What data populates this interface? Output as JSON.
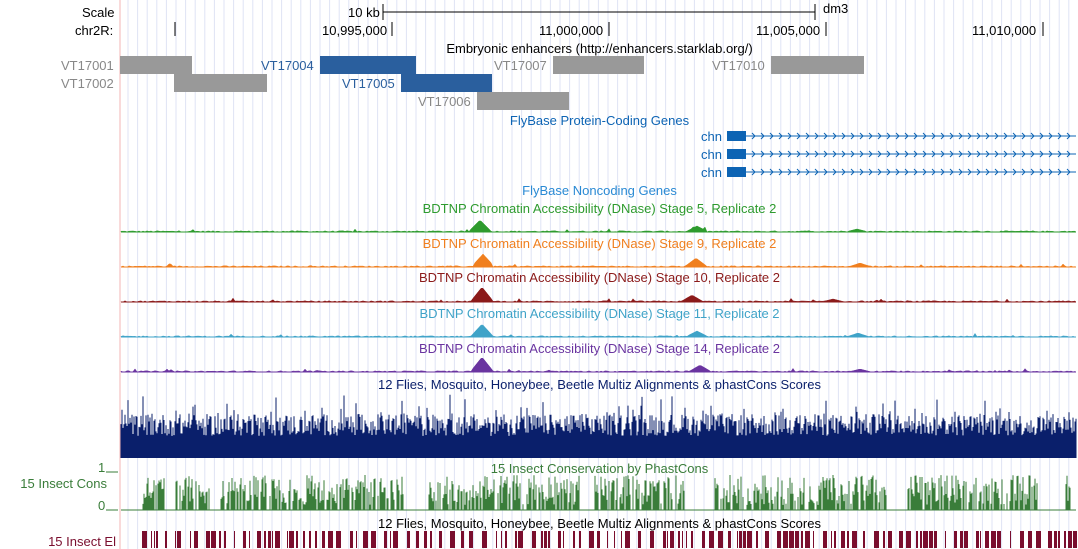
{
  "ruler": {
    "scale_label": "Scale",
    "scale_bar_label": "10 kb",
    "assembly": "dm3",
    "chrom_label": "chr2R:",
    "positions": [
      "10,995,000",
      "11,000,000",
      "11,005,000",
      "11,010,000"
    ]
  },
  "tracks": {
    "enhancers": {
      "title": "Embryonic enhancers (http://enhancers.starklab.org/)",
      "items": [
        {
          "name": "VT17001",
          "color": "#999999"
        },
        {
          "name": "VT17002",
          "color": "#999999"
        },
        {
          "name": "VT17004",
          "color": "#2a5f9e"
        },
        {
          "name": "VT17005",
          "color": "#2a5f9e"
        },
        {
          "name": "VT17006",
          "color": "#999999"
        },
        {
          "name": "VT17007",
          "color": "#999999"
        },
        {
          "name": "VT17010",
          "color": "#999999"
        }
      ]
    },
    "flybase_coding": {
      "title": "FlyBase Protein-Coding Genes",
      "color": "#0d64b4",
      "genes": [
        "chn",
        "chn",
        "chn"
      ]
    },
    "flybase_noncoding": {
      "title": "FlyBase Noncoding Genes",
      "color": "#2a8ad4"
    },
    "dnase": [
      {
        "title": "BDTNP Chromatin Accessibility (DNase) Stage 5, Replicate 2",
        "color": "#2e9b2e"
      },
      {
        "title": "BDTNP Chromatin Accessibility (DNase) Stage 9, Replicate 2",
        "color": "#f07f1e"
      },
      {
        "title": "BDTNP Chromatin Accessibility (DNase) Stage 10, Replicate 2",
        "color": "#8b1a1a"
      },
      {
        "title": "BDTNP Chromatin Accessibility (DNase) Stage 11, Replicate 2",
        "color": "#3fa3c8"
      },
      {
        "title": "BDTNP Chromatin Accessibility (DNase) Stage 14, Replicate 2",
        "color": "#6a34a0"
      }
    ],
    "multiz": {
      "title": "12 Flies, Mosquito, Honeybee, Beetle Multiz Alignments & phastCons Scores",
      "color": "#0a1f6b"
    },
    "cons": {
      "title": "15 Insect Conservation by PhastCons",
      "side_label": "15 Insect Cons",
      "axis_top": "1",
      "axis_bottom": "0",
      "color": "#3a7d3a"
    },
    "elements": {
      "title": "12 Flies, Mosquito, Honeybee, Beetle Multiz Alignments & phastCons Scores",
      "side_label": "15 Insect El",
      "color": "#7a0e2e"
    }
  }
}
